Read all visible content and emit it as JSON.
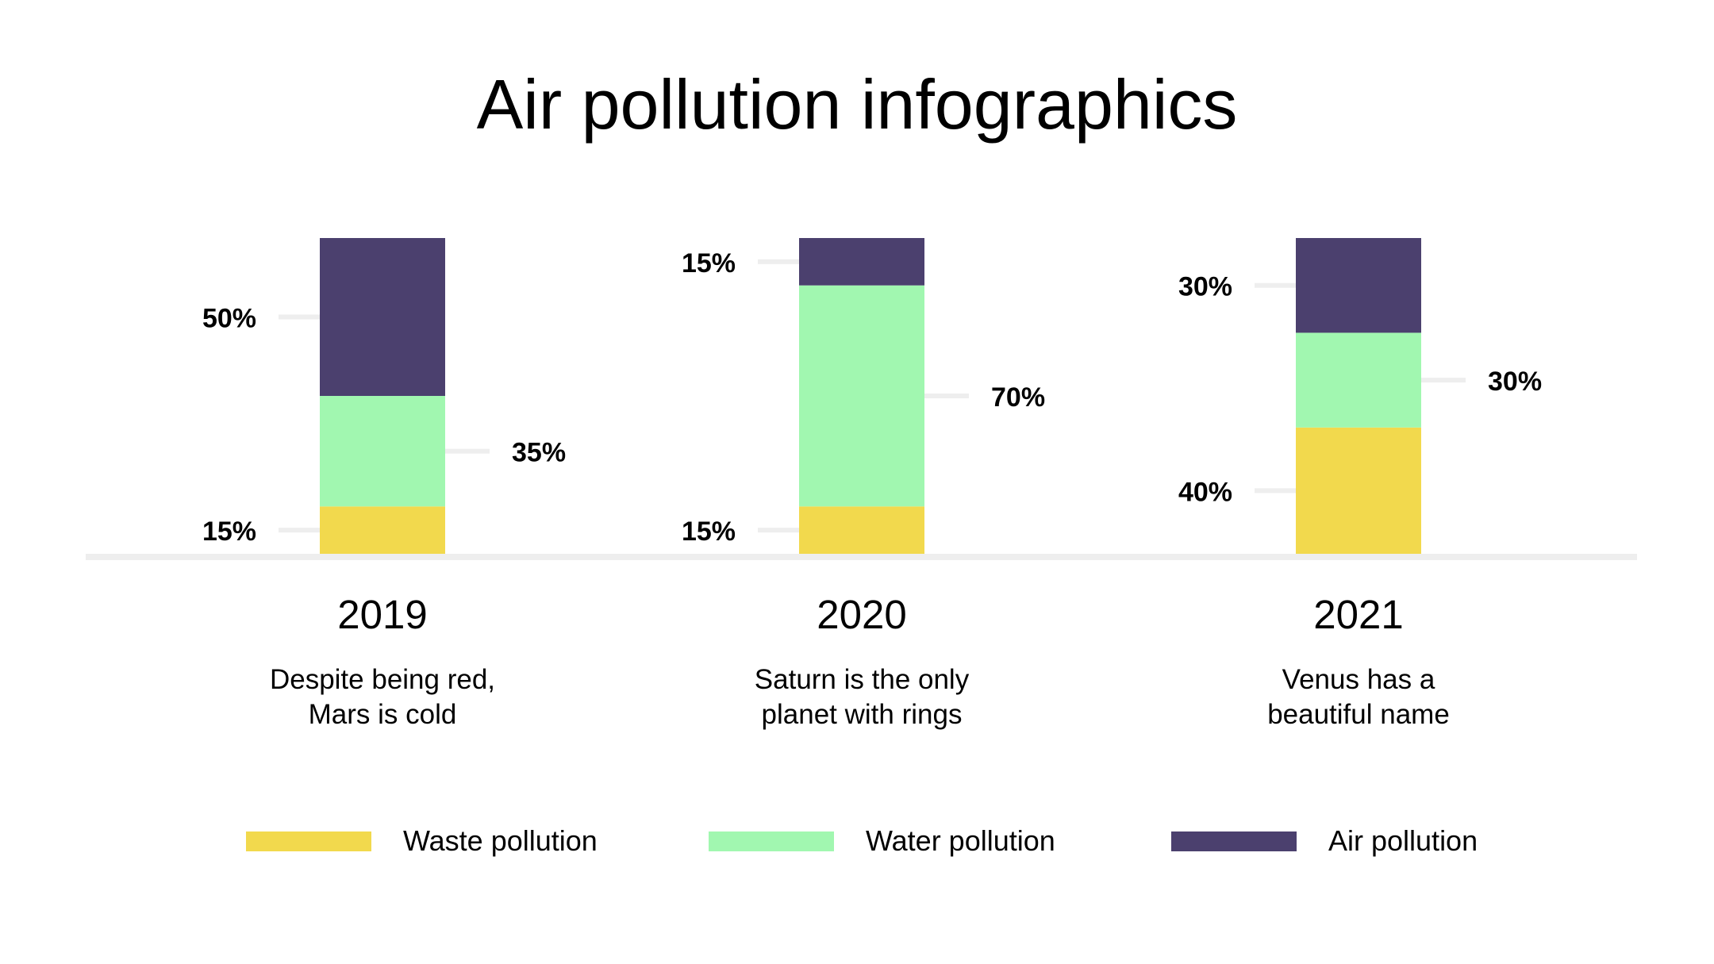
{
  "title": "Air pollution infographics",
  "colors": {
    "waste": "#F2D94D",
    "water": "#A1F7B0",
    "air": "#4B406E",
    "guide": "#EEEEEE"
  },
  "groups": [
    {
      "year": "2019",
      "description": "Despite being red,\nMars is cold"
    },
    {
      "year": "2020",
      "description": "Saturn is the only\nplanet with rings"
    },
    {
      "year": "2021",
      "description": "Venus has a\nbeautiful name"
    }
  ],
  "legend": [
    {
      "label": "Waste pollution",
      "color_key": "waste"
    },
    {
      "label": "Water pollution",
      "color_key": "water"
    },
    {
      "label": "Air pollution",
      "color_key": "air"
    }
  ],
  "chart_data": {
    "type": "bar",
    "stacked": true,
    "categories": [
      "2019",
      "2020",
      "2021"
    ],
    "series": [
      {
        "name": "Waste pollution",
        "values": [
          15,
          15,
          40
        ],
        "labels": [
          "15%",
          "15%",
          "40%"
        ],
        "color_key": "waste"
      },
      {
        "name": "Water pollution",
        "values": [
          35,
          70,
          30
        ],
        "labels": [
          "35%",
          "70%",
          "30%"
        ],
        "color_key": "water"
      },
      {
        "name": "Air pollution",
        "values": [
          50,
          15,
          30
        ],
        "labels": [
          "50%",
          "15%",
          "30%"
        ],
        "color_key": "air"
      }
    ],
    "label_sides": [
      [
        "left",
        "right",
        "left"
      ],
      [
        "left",
        "right",
        "left"
      ],
      [
        "left",
        "right",
        "left"
      ]
    ],
    "ylim": [
      0,
      100
    ],
    "legend_position": "bottom",
    "grid": false
  }
}
